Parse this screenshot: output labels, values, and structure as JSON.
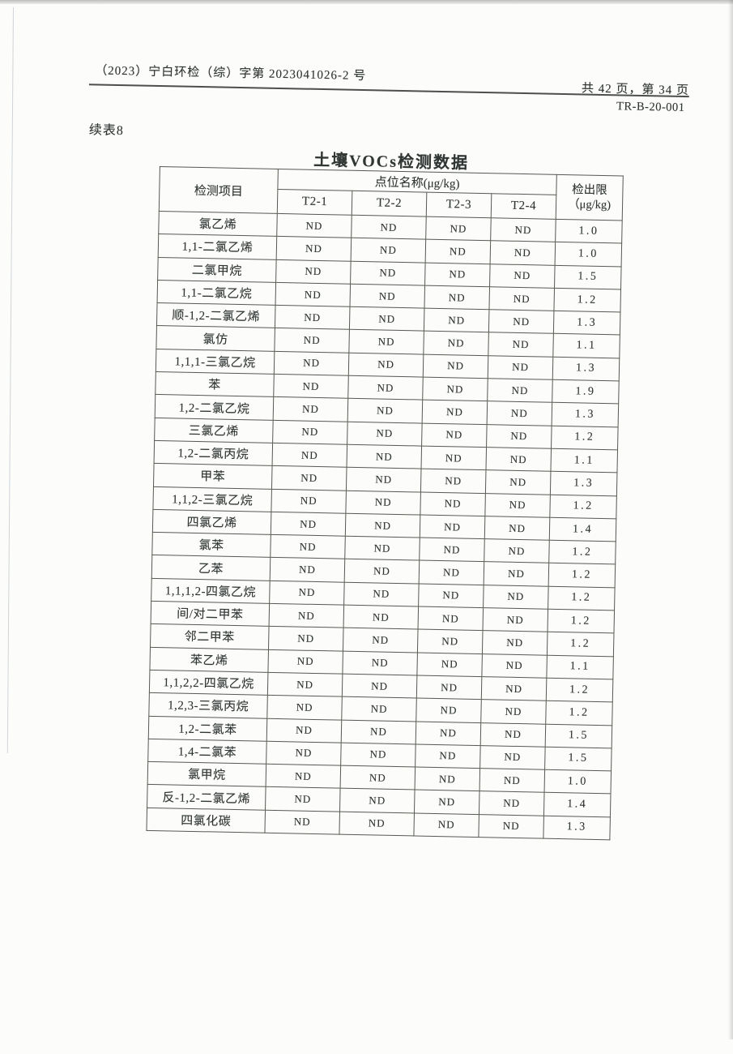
{
  "colors": {
    "ink": "#303634",
    "table_line": "#555a52"
  },
  "page": {
    "doc_number": "（2023）宁白环检（综）字第 2023041026-2 号",
    "page_count": "共 42 页，第 34 页",
    "report_code": "TR-B-20-001",
    "continued_table_label": "续表8"
  },
  "table": {
    "title": "土壤VOCs检测数据",
    "header": {
      "item_col": "检测项目",
      "group_col": "点位名称(μg/kg)",
      "point_cols": [
        "T2-1",
        "T2-2",
        "T2-3",
        "T2-4"
      ],
      "limit_col_line1": "检出限",
      "limit_col_line2": "（μg/kg)"
    },
    "rows": [
      {
        "name": "氯乙烯",
        "values": [
          "ND",
          "ND",
          "ND",
          "ND"
        ],
        "limit": "1.0"
      },
      {
        "name": "1,1-二氯乙烯",
        "values": [
          "ND",
          "ND",
          "ND",
          "ND"
        ],
        "limit": "1.0"
      },
      {
        "name": "二氯甲烷",
        "values": [
          "ND",
          "ND",
          "ND",
          "ND"
        ],
        "limit": "1.5"
      },
      {
        "name": "1,1-二氯乙烷",
        "values": [
          "ND",
          "ND",
          "ND",
          "ND"
        ],
        "limit": "1.2"
      },
      {
        "name": "顺-1,2-二氯乙烯",
        "values": [
          "ND",
          "ND",
          "ND",
          "ND"
        ],
        "limit": "1.3"
      },
      {
        "name": "氯仿",
        "values": [
          "ND",
          "ND",
          "ND",
          "ND"
        ],
        "limit": "1.1"
      },
      {
        "name": "1,1,1-三氯乙烷",
        "values": [
          "ND",
          "ND",
          "ND",
          "ND"
        ],
        "limit": "1.3"
      },
      {
        "name": "苯",
        "values": [
          "ND",
          "ND",
          "ND",
          "ND"
        ],
        "limit": "1.9"
      },
      {
        "name": "1,2-二氯乙烷",
        "values": [
          "ND",
          "ND",
          "ND",
          "ND"
        ],
        "limit": "1.3"
      },
      {
        "name": "三氯乙烯",
        "values": [
          "ND",
          "ND",
          "ND",
          "ND"
        ],
        "limit": "1.2"
      },
      {
        "name": "1,2-二氯丙烷",
        "values": [
          "ND",
          "ND",
          "ND",
          "ND"
        ],
        "limit": "1.1"
      },
      {
        "name": "甲苯",
        "values": [
          "ND",
          "ND",
          "ND",
          "ND"
        ],
        "limit": "1.3"
      },
      {
        "name": "1,1,2-三氯乙烷",
        "values": [
          "ND",
          "ND",
          "ND",
          "ND"
        ],
        "limit": "1.2"
      },
      {
        "name": "四氯乙烯",
        "values": [
          "ND",
          "ND",
          "ND",
          "ND"
        ],
        "limit": "1.4"
      },
      {
        "name": "氯苯",
        "values": [
          "ND",
          "ND",
          "ND",
          "ND"
        ],
        "limit": "1.2"
      },
      {
        "name": "乙苯",
        "values": [
          "ND",
          "ND",
          "ND",
          "ND"
        ],
        "limit": "1.2"
      },
      {
        "name": "1,1,1,2-四氯乙烷",
        "values": [
          "ND",
          "ND",
          "ND",
          "ND"
        ],
        "limit": "1.2"
      },
      {
        "name": "间/对二甲苯",
        "values": [
          "ND",
          "ND",
          "ND",
          "ND"
        ],
        "limit": "1.2"
      },
      {
        "name": "邻二甲苯",
        "values": [
          "ND",
          "ND",
          "ND",
          "ND"
        ],
        "limit": "1.2"
      },
      {
        "name": "苯乙烯",
        "values": [
          "ND",
          "ND",
          "ND",
          "ND"
        ],
        "limit": "1.1"
      },
      {
        "name": "1,1,2,2-四氯乙烷",
        "values": [
          "ND",
          "ND",
          "ND",
          "ND"
        ],
        "limit": "1.2"
      },
      {
        "name": "1,2,3-三氯丙烷",
        "values": [
          "ND",
          "ND",
          "ND",
          "ND"
        ],
        "limit": "1.2"
      },
      {
        "name": "1,2-二氯苯",
        "values": [
          "ND",
          "ND",
          "ND",
          "ND"
        ],
        "limit": "1.5"
      },
      {
        "name": "1,4-二氯苯",
        "values": [
          "ND",
          "ND",
          "ND",
          "ND"
        ],
        "limit": "1.5"
      },
      {
        "name": "氯甲烷",
        "values": [
          "ND",
          "ND",
          "ND",
          "ND"
        ],
        "limit": "1.0"
      },
      {
        "name": "反-1,2-二氯乙烯",
        "values": [
          "ND",
          "ND",
          "ND",
          "ND"
        ],
        "limit": "1.4"
      },
      {
        "name": "四氯化碳",
        "values": [
          "ND",
          "ND",
          "ND",
          "ND"
        ],
        "limit": "1.3"
      }
    ]
  }
}
